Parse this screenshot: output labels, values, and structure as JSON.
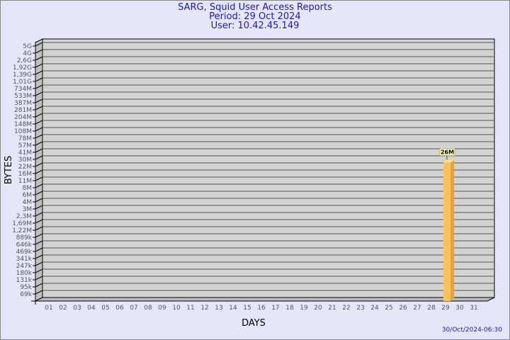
{
  "header": {
    "title": "SARG, Squid User Access Reports",
    "period": "Period: 29 Oct 2024",
    "user": "User: 10.42.45.149"
  },
  "footer": {
    "timestamp": "30/Oct/2024-06:30"
  },
  "colors": {
    "background": "#e6e6fa",
    "wall": "#d3d3d3",
    "bar": "#ffc060",
    "bar_side": "#e0a448",
    "title": "#1a1aa8"
  },
  "chart_data": {
    "type": "bar",
    "xlabel": "DAYS",
    "ylabel": "BYTES",
    "yscale": "log",
    "grid": true,
    "y_ticks": [
      "5G",
      "4G",
      "2,6G",
      "1,92G",
      "1,39G",
      "1,01G",
      "734M",
      "533M",
      "387M",
      "281M",
      "204M",
      "148M",
      "108M",
      "78M",
      "57M",
      "41M",
      "30M",
      "22M",
      "16M",
      "11M",
      "8M",
      "6M",
      "4M",
      "3M",
      "2,3M",
      "1,69M",
      "1,22M",
      "889k",
      "646k",
      "469k",
      "341k",
      "247k",
      "180k",
      "131k",
      "95k",
      "69k"
    ],
    "categories": [
      "01",
      "02",
      "03",
      "04",
      "05",
      "06",
      "07",
      "08",
      "09",
      "10",
      "11",
      "12",
      "13",
      "14",
      "15",
      "16",
      "17",
      "18",
      "19",
      "20",
      "21",
      "22",
      "23",
      "24",
      "25",
      "26",
      "27",
      "28",
      "29",
      "30",
      "31"
    ],
    "bars": [
      {
        "category": "29",
        "value": 26000000,
        "label": "26M"
      }
    ]
  }
}
